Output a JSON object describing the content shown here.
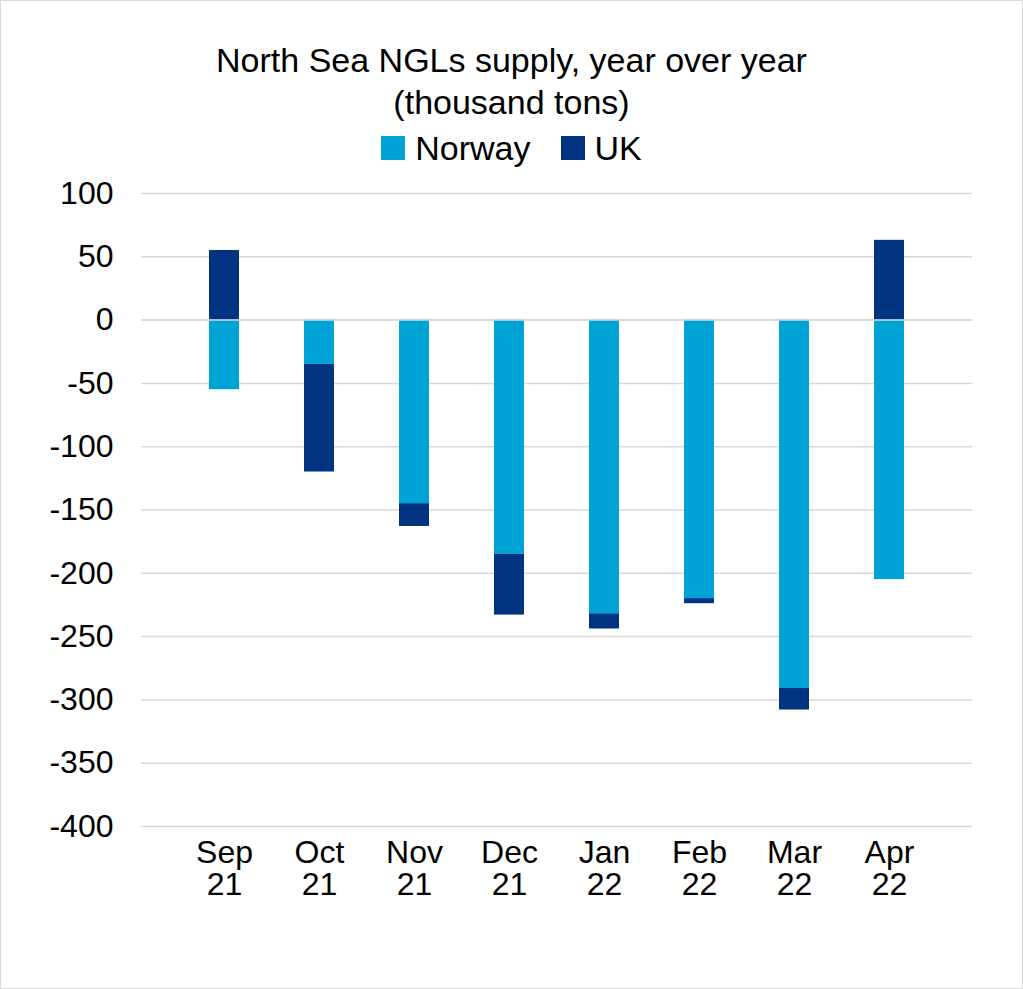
{
  "chart_data": {
    "type": "bar",
    "stacked": true,
    "title": "North Sea NGLs supply, year over year",
    "subtitle": "(thousand tons)",
    "categories": [
      "Sep 21",
      "Oct 21",
      "Nov 21",
      "Dec 21",
      "Jan 22",
      "Feb 22",
      "Mar 22",
      "Apr 22"
    ],
    "series": [
      {
        "name": "Norway",
        "color": "#00a3d6",
        "values": [
          -55,
          -35,
          -145,
          -185,
          -232,
          -220,
          -291,
          -205
        ]
      },
      {
        "name": "UK",
        "color": "#003380",
        "values": [
          55,
          -85,
          -18,
          -48,
          -12,
          -4,
          -17,
          63
        ]
      }
    ],
    "ylim": [
      -400,
      100
    ],
    "yticks": [
      -400,
      -350,
      -300,
      -250,
      -200,
      -150,
      -100,
      -50,
      0,
      50,
      100
    ],
    "grid": true,
    "legend": "top"
  }
}
